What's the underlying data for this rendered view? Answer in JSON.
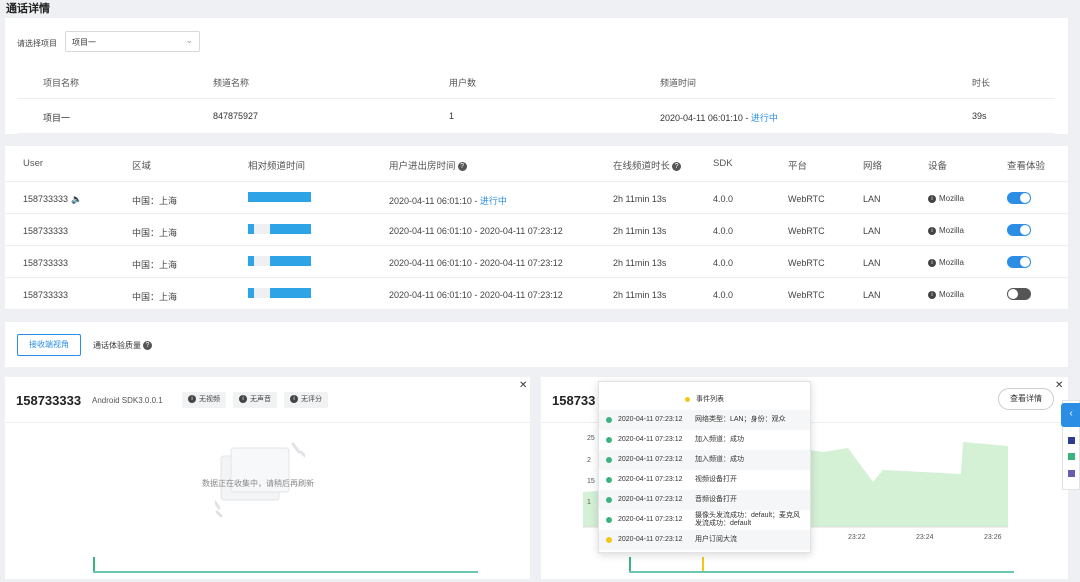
{
  "page_title": "通话详情",
  "project_filter": {
    "label": "请选择项目",
    "selected": "项目一"
  },
  "project_table": {
    "headers": [
      "项目名称",
      "频道名称",
      "用户数",
      "频道时间",
      "时长"
    ],
    "row": {
      "name": "项目一",
      "channel": "847875927",
      "users": "1",
      "time": "2020-04-11 06:01:10 - ",
      "status": "进行中",
      "duration": "39s"
    }
  },
  "user_table": {
    "headers": {
      "user": "User",
      "region": "区域",
      "relative": "相对频道时间",
      "inout": "用户进出房时间",
      "online": "在线频道时长",
      "sdk": "SDK",
      "platform": "平台",
      "network": "网络",
      "device": "设备",
      "experience": "查看体验"
    },
    "rows": [
      {
        "user": "158733333",
        "region": "中国：上海",
        "time": "2020-04-11 06:01:10 - ",
        "status": "进行中",
        "online": "2h 11min 13s",
        "sdk": "4.0.0",
        "platform": "WebRTC",
        "network": "LAN",
        "device": "Mozilla",
        "bar_segments": [
          [
            0,
            1
          ]
        ],
        "toggle": true,
        "speaking": true
      },
      {
        "user": "158733333",
        "region": "中国：上海",
        "time": "2020-04-11 06:01:10 - 2020-04-11 07:23:12",
        "status": "",
        "online": "2h 11min 13s",
        "sdk": "4.0.0",
        "platform": "WebRTC",
        "network": "LAN",
        "device": "Mozilla",
        "bar_segments": [
          [
            0,
            0.1
          ],
          [
            0.35,
            1
          ]
        ],
        "toggle": true,
        "speaking": false
      },
      {
        "user": "158733333",
        "region": "中国：上海",
        "time": "2020-04-11 06:01:10 - 2020-04-11 07:23:12",
        "status": "",
        "online": "2h 11min 13s",
        "sdk": "4.0.0",
        "platform": "WebRTC",
        "network": "LAN",
        "device": "Mozilla",
        "bar_segments": [
          [
            0,
            0.1
          ],
          [
            0.35,
            1
          ]
        ],
        "toggle": true,
        "speaking": false
      },
      {
        "user": "158733333",
        "region": "中国：上海",
        "time": "2020-04-11 06:01:10 - 2020-04-11 07:23:12",
        "status": "",
        "online": "2h 11min 13s",
        "sdk": "4.0.0",
        "platform": "WebRTC",
        "network": "LAN",
        "device": "Mozilla",
        "bar_segments": [
          [
            0,
            0.1
          ],
          [
            0.35,
            1
          ]
        ],
        "toggle": false,
        "speaking": false
      }
    ]
  },
  "tabs": {
    "active": "接收端视角",
    "other": "通话体验质量"
  },
  "panel_left": {
    "user": "158733333",
    "sdk": "Android SDK3.0.0.1",
    "badges": [
      "无视频",
      "无声音",
      "无评分"
    ],
    "empty_text": "数据正在收集中，请稍后再刷新"
  },
  "panel_right": {
    "user": "158733",
    "view_button": "查看详情",
    "x_ticks": [
      "23:22",
      "23:24",
      "23:26"
    ]
  },
  "event_popup": {
    "title": "事件列表",
    "events": [
      {
        "time": "2020-04-11 07:23:12",
        "desc": "网络类型：LAN；身份：观众",
        "color": "#3bb37f"
      },
      {
        "time": "2020-04-11 07:23:12",
        "desc": "加入频道：成功",
        "color": "#3bb37f"
      },
      {
        "time": "2020-04-11 07:23:12",
        "desc": "加入频道：成功",
        "color": "#3bb37f"
      },
      {
        "time": "2020-04-11 07:23:12",
        "desc": "视频设备打开",
        "color": "#3bb37f"
      },
      {
        "time": "2020-04-11 07:23:12",
        "desc": "音频设备打开",
        "color": "#3bb37f"
      },
      {
        "time": "2020-04-11 07:23:12",
        "desc": "摄像头发流成功：default；麦克风发流成功：default",
        "color": "#3bb37f"
      },
      {
        "time": "2020-04-11 07:23:12",
        "desc": "用户订阅大流",
        "color": "#f5c518"
      }
    ]
  },
  "colors": {
    "accent": "#2b8ee4",
    "bar": "#2ea3e6",
    "success": "#3bb37f",
    "warning": "#f5c518"
  }
}
